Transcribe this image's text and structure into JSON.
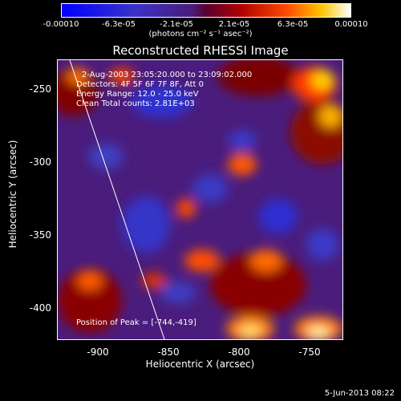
{
  "colorbar": {
    "ticks": [
      "-0.00010",
      "-6.3e-05",
      "-2.1e-05",
      "2.1e-05",
      "6.3e-05",
      "0.00010"
    ],
    "units": "(photons cm⁻² s⁻¹ asec⁻²)"
  },
  "title": "Reconstructed RHESSI Image",
  "annotations": {
    "time_range": "2-Aug-2003 23:05:20.000 to 23:09:02.000",
    "detectors": "Detectors: 4F 5F 6F 7F 8F, Att 0",
    "energy": "Energy Range: 12.0 - 25.0 keV",
    "clean": "Clean     Total counts: 2.81E+03",
    "peak": "Position of Peak = [-744,-419]"
  },
  "axes": {
    "x_title": "Heliocentric X (arcsec)",
    "y_title": "Heliocentric Y (arcsec)",
    "x_ticks": [
      "-900",
      "-850",
      "-800",
      "-750"
    ],
    "y_ticks": [
      "-250",
      "-300",
      "-350",
      "-400"
    ]
  },
  "footer": {
    "date": "5-Jun-2013 08:22"
  },
  "colors": {
    "low": "#2b2bd6",
    "mid": "#6a1f8a",
    "high": "#ffffff",
    "accent": "#d33000"
  }
}
